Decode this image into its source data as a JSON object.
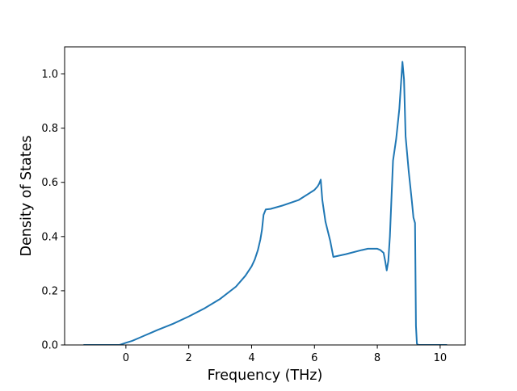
{
  "chart_data": {
    "type": "line",
    "title": "",
    "xlabel": "Frequency (THz)",
    "ylabel": "Density of States",
    "xlim": [
      -1.95,
      10.8
    ],
    "ylim": [
      0.0,
      1.1
    ],
    "x_ticks": [
      0,
      2,
      4,
      6,
      8,
      10
    ],
    "y_ticks": [
      0.0,
      0.2,
      0.4,
      0.6,
      0.8,
      1.0
    ],
    "x_tick_labels": [
      "0",
      "2",
      "4",
      "6",
      "8",
      "10"
    ],
    "y_tick_labels": [
      "0.0",
      "0.2",
      "0.4",
      "0.6",
      "0.8",
      "1.0"
    ],
    "grid": false,
    "legend": "none",
    "series": [
      {
        "color": "#1f77b4",
        "x": [
          -1.35,
          -0.8,
          -0.4,
          -0.2,
          0.0,
          0.2,
          0.4,
          0.6,
          0.8,
          1.0,
          1.5,
          2.0,
          2.5,
          3.0,
          3.5,
          3.8,
          4.0,
          4.1,
          4.2,
          4.28,
          4.33,
          4.38,
          4.45,
          4.6,
          5.0,
          5.5,
          6.0,
          6.1,
          6.15,
          6.2,
          6.25,
          6.35,
          6.5,
          6.6,
          7.0,
          7.5,
          7.7,
          8.0,
          8.1,
          8.2,
          8.25,
          8.3,
          8.35,
          8.4,
          8.5,
          8.6,
          8.7,
          8.8,
          8.85,
          8.9,
          9.0,
          9.1,
          9.15,
          9.2,
          9.23,
          9.26,
          9.3,
          10.22
        ],
        "y": [
          0.0,
          0.0,
          0.0,
          0.0,
          0.008,
          0.015,
          0.025,
          0.035,
          0.045,
          0.055,
          0.078,
          0.105,
          0.135,
          0.17,
          0.215,
          0.255,
          0.29,
          0.315,
          0.35,
          0.39,
          0.425,
          0.48,
          0.5,
          0.502,
          0.515,
          0.535,
          0.572,
          0.585,
          0.595,
          0.61,
          0.535,
          0.455,
          0.385,
          0.325,
          0.335,
          0.35,
          0.355,
          0.355,
          0.35,
          0.34,
          0.31,
          0.275,
          0.31,
          0.4,
          0.68,
          0.76,
          0.87,
          1.045,
          0.98,
          0.77,
          0.64,
          0.53,
          0.47,
          0.45,
          0.07,
          0.005,
          0.0,
          0.0
        ]
      }
    ]
  }
}
